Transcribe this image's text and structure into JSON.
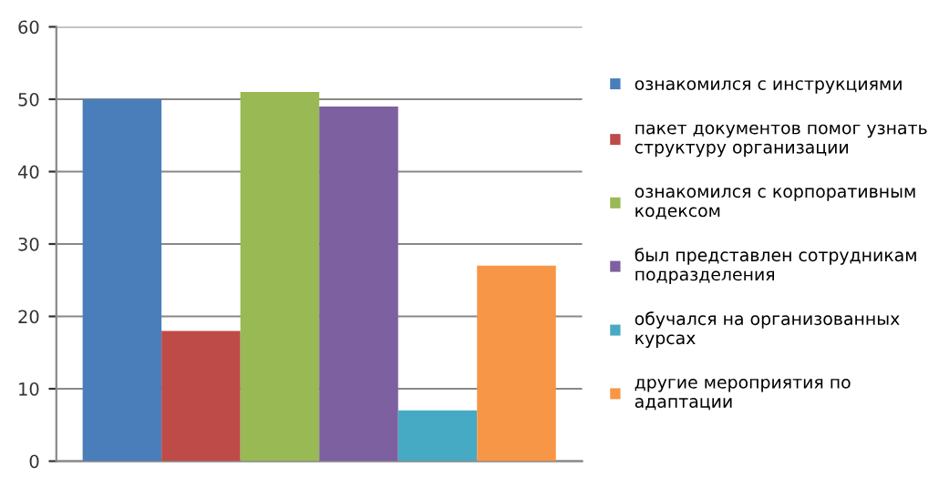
{
  "chart_data": {
    "type": "bar",
    "categories": [
      null
    ],
    "series": [
      {
        "name": "ознакомился с инструкциями",
        "color": "#4a7ebb",
        "values": [
          50
        ]
      },
      {
        "name": "пакет документов помог узнать\nструктуру организации",
        "color": "#be4b48",
        "values": [
          18
        ]
      },
      {
        "name": "ознакомился с корпоративным\nкодексом",
        "color": "#98b954",
        "values": [
          51
        ]
      },
      {
        "name": "был представлен сотрудникам\nподразделения",
        "color": "#7d60a0",
        "values": [
          49
        ]
      },
      {
        "name": "обучался на организованных\nкурсах",
        "color": "#46aac5",
        "values": [
          7
        ]
      },
      {
        "name": "другие мероприятия по\nадаптации",
        "color": "#f79646",
        "values": [
          27
        ]
      }
    ],
    "ylim": [
      0,
      60
    ],
    "yticks": [
      0,
      10,
      20,
      30,
      40,
      50,
      60
    ],
    "grid": "y",
    "legend": "right"
  }
}
